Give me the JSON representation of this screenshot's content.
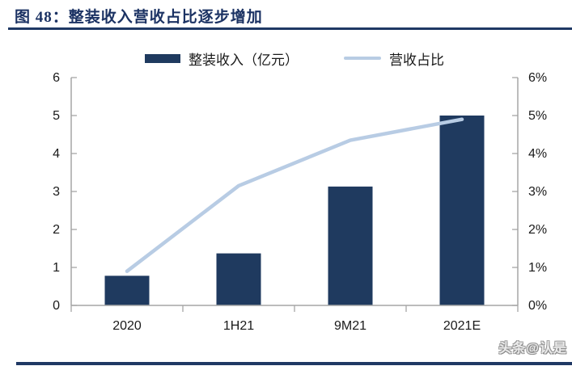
{
  "header": {
    "title": "图 48：整装收入营收占比逐步增加",
    "figure_number": "图 48"
  },
  "legend": {
    "bar": {
      "label": "整装收入（亿元）"
    },
    "line": {
      "label": "营收占比"
    }
  },
  "watermark": "头条@认是",
  "colors": {
    "title_navy": "#1f3864",
    "bar_fill": "#1f3a5f",
    "line_stroke": "#b8cce4",
    "axis_gray": "#a6a6a6",
    "label_black": "#1a1a1a"
  },
  "chart_data": {
    "type": "bar",
    "subtype": "bar-with-line-overlay",
    "title": "整装收入营收占比逐步增加",
    "categories": [
      "2020",
      "1H21",
      "9M21",
      "2021E"
    ],
    "series": [
      {
        "name": "整装收入（亿元）",
        "type": "bar",
        "axis": "left",
        "color": "#1f3a5f",
        "values": [
          0.78,
          1.37,
          3.13,
          5.0
        ]
      },
      {
        "name": "营收占比",
        "type": "line",
        "axis": "right",
        "color": "#b8cce4",
        "values": [
          0.9,
          3.15,
          4.35,
          4.9
        ],
        "unit": "%"
      }
    ],
    "left_axis": {
      "min": 0,
      "max": 6,
      "tick_labels": [
        "0",
        "1",
        "2",
        "3",
        "4",
        "5",
        "6"
      ]
    },
    "right_axis": {
      "min": 0,
      "max": 6,
      "tick_labels": [
        "0%",
        "1%",
        "2%",
        "3%",
        "4%",
        "5%",
        "6%"
      ]
    },
    "grid": false,
    "legend_position": "top-center"
  }
}
